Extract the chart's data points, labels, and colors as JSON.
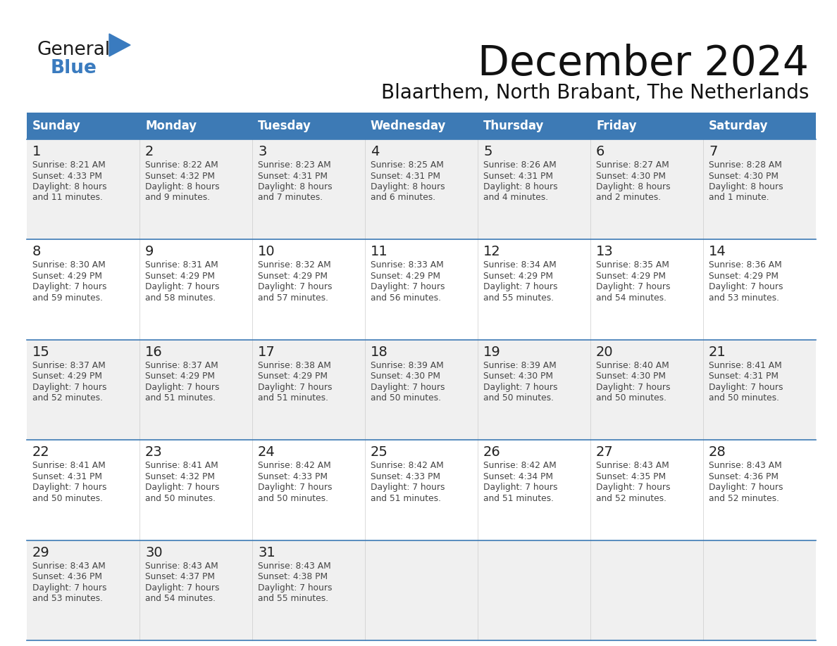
{
  "title": "December 2024",
  "subtitle": "Blaarthem, North Brabant, The Netherlands",
  "header_color": "#3d7ab5",
  "header_text_color": "#ffffff",
  "cell_bg_odd": "#f0f0f0",
  "cell_bg_even": "#ffffff",
  "text_color": "#333333",
  "day_headers": [
    "Sunday",
    "Monday",
    "Tuesday",
    "Wednesday",
    "Thursday",
    "Friday",
    "Saturday"
  ],
  "logo_general_color": "#1a1a1a",
  "logo_blue_color": "#3a7bbf",
  "logo_triangle_color": "#3a7bbf",
  "weeks": [
    [
      {
        "day": 1,
        "sunrise": "8:21 AM",
        "sunset": "4:33 PM",
        "daylight_h": "8 hours",
        "daylight_m": "11 minutes."
      },
      {
        "day": 2,
        "sunrise": "8:22 AM",
        "sunset": "4:32 PM",
        "daylight_h": "8 hours",
        "daylight_m": "9 minutes."
      },
      {
        "day": 3,
        "sunrise": "8:23 AM",
        "sunset": "4:31 PM",
        "daylight_h": "8 hours",
        "daylight_m": "7 minutes."
      },
      {
        "day": 4,
        "sunrise": "8:25 AM",
        "sunset": "4:31 PM",
        "daylight_h": "8 hours",
        "daylight_m": "6 minutes."
      },
      {
        "day": 5,
        "sunrise": "8:26 AM",
        "sunset": "4:31 PM",
        "daylight_h": "8 hours",
        "daylight_m": "4 minutes."
      },
      {
        "day": 6,
        "sunrise": "8:27 AM",
        "sunset": "4:30 PM",
        "daylight_h": "8 hours",
        "daylight_m": "2 minutes."
      },
      {
        "day": 7,
        "sunrise": "8:28 AM",
        "sunset": "4:30 PM",
        "daylight_h": "8 hours",
        "daylight_m": "1 minute."
      }
    ],
    [
      {
        "day": 8,
        "sunrise": "8:30 AM",
        "sunset": "4:29 PM",
        "daylight_h": "7 hours",
        "daylight_m": "59 minutes."
      },
      {
        "day": 9,
        "sunrise": "8:31 AM",
        "sunset": "4:29 PM",
        "daylight_h": "7 hours",
        "daylight_m": "58 minutes."
      },
      {
        "day": 10,
        "sunrise": "8:32 AM",
        "sunset": "4:29 PM",
        "daylight_h": "7 hours",
        "daylight_m": "57 minutes."
      },
      {
        "day": 11,
        "sunrise": "8:33 AM",
        "sunset": "4:29 PM",
        "daylight_h": "7 hours",
        "daylight_m": "56 minutes."
      },
      {
        "day": 12,
        "sunrise": "8:34 AM",
        "sunset": "4:29 PM",
        "daylight_h": "7 hours",
        "daylight_m": "55 minutes."
      },
      {
        "day": 13,
        "sunrise": "8:35 AM",
        "sunset": "4:29 PM",
        "daylight_h": "7 hours",
        "daylight_m": "54 minutes."
      },
      {
        "day": 14,
        "sunrise": "8:36 AM",
        "sunset": "4:29 PM",
        "daylight_h": "7 hours",
        "daylight_m": "53 minutes."
      }
    ],
    [
      {
        "day": 15,
        "sunrise": "8:37 AM",
        "sunset": "4:29 PM",
        "daylight_h": "7 hours",
        "daylight_m": "52 minutes."
      },
      {
        "day": 16,
        "sunrise": "8:37 AM",
        "sunset": "4:29 PM",
        "daylight_h": "7 hours",
        "daylight_m": "51 minutes."
      },
      {
        "day": 17,
        "sunrise": "8:38 AM",
        "sunset": "4:29 PM",
        "daylight_h": "7 hours",
        "daylight_m": "51 minutes."
      },
      {
        "day": 18,
        "sunrise": "8:39 AM",
        "sunset": "4:30 PM",
        "daylight_h": "7 hours",
        "daylight_m": "50 minutes."
      },
      {
        "day": 19,
        "sunrise": "8:39 AM",
        "sunset": "4:30 PM",
        "daylight_h": "7 hours",
        "daylight_m": "50 minutes."
      },
      {
        "day": 20,
        "sunrise": "8:40 AM",
        "sunset": "4:30 PM",
        "daylight_h": "7 hours",
        "daylight_m": "50 minutes."
      },
      {
        "day": 21,
        "sunrise": "8:41 AM",
        "sunset": "4:31 PM",
        "daylight_h": "7 hours",
        "daylight_m": "50 minutes."
      }
    ],
    [
      {
        "day": 22,
        "sunrise": "8:41 AM",
        "sunset": "4:31 PM",
        "daylight_h": "7 hours",
        "daylight_m": "50 minutes."
      },
      {
        "day": 23,
        "sunrise": "8:41 AM",
        "sunset": "4:32 PM",
        "daylight_h": "7 hours",
        "daylight_m": "50 minutes."
      },
      {
        "day": 24,
        "sunrise": "8:42 AM",
        "sunset": "4:33 PM",
        "daylight_h": "7 hours",
        "daylight_m": "50 minutes."
      },
      {
        "day": 25,
        "sunrise": "8:42 AM",
        "sunset": "4:33 PM",
        "daylight_h": "7 hours",
        "daylight_m": "51 minutes."
      },
      {
        "day": 26,
        "sunrise": "8:42 AM",
        "sunset": "4:34 PM",
        "daylight_h": "7 hours",
        "daylight_m": "51 minutes."
      },
      {
        "day": 27,
        "sunrise": "8:43 AM",
        "sunset": "4:35 PM",
        "daylight_h": "7 hours",
        "daylight_m": "52 minutes."
      },
      {
        "day": 28,
        "sunrise": "8:43 AM",
        "sunset": "4:36 PM",
        "daylight_h": "7 hours",
        "daylight_m": "52 minutes."
      }
    ],
    [
      {
        "day": 29,
        "sunrise": "8:43 AM",
        "sunset": "4:36 PM",
        "daylight_h": "7 hours",
        "daylight_m": "53 minutes."
      },
      {
        "day": 30,
        "sunrise": "8:43 AM",
        "sunset": "4:37 PM",
        "daylight_h": "7 hours",
        "daylight_m": "54 minutes."
      },
      {
        "day": 31,
        "sunrise": "8:43 AM",
        "sunset": "4:38 PM",
        "daylight_h": "7 hours",
        "daylight_m": "55 minutes."
      },
      null,
      null,
      null,
      null
    ]
  ]
}
